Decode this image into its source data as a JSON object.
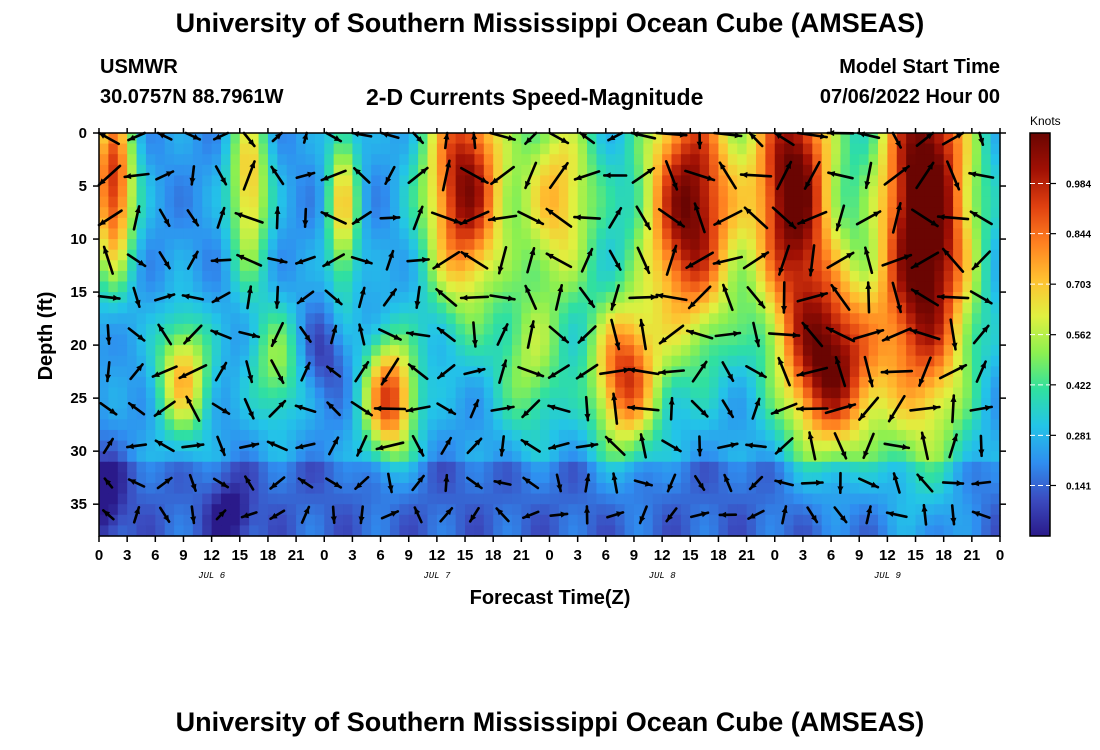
{
  "header": {
    "title": "University of Southern Mississippi Ocean Cube (AMSEAS)",
    "station": "USMWR",
    "coords": "30.0757N  88.7961W",
    "subtitle": "2-D Currents Speed-Magnitude",
    "model_start_label": "Model Start Time",
    "model_start_value": "07/06/2022 Hour 00"
  },
  "footer": {
    "title": "University of Southern Mississippi Ocean Cube (AMSEAS)"
  },
  "colors": {
    "colormap": [
      "#2a1a8a",
      "#3b4cc0",
      "#2f8ef0",
      "#23c4e8",
      "#30e0a0",
      "#8cf050",
      "#e0f040",
      "#ffc030",
      "#ff8020",
      "#e04010",
      "#a01004",
      "#6a0502"
    ],
    "arrow": "#000000",
    "axis": "#000000"
  },
  "chart_data": {
    "type": "heatmap",
    "xlabel": "Forecast Time(Z)",
    "ylabel": "Depth (ft)",
    "xlim": [
      0,
      96
    ],
    "ylim": [
      0,
      38
    ],
    "x_ticks": [
      0,
      3,
      6,
      9,
      12,
      15,
      18,
      21,
      24,
      27,
      30,
      33,
      36,
      39,
      42,
      45,
      48,
      51,
      54,
      57,
      60,
      63,
      66,
      69,
      72,
      75,
      78,
      81,
      84,
      87,
      90,
      93,
      96
    ],
    "x_tick_labels": [
      "0",
      "3",
      "6",
      "9",
      "12",
      "15",
      "18",
      "21",
      "0",
      "3",
      "6",
      "9",
      "12",
      "15",
      "18",
      "21",
      "0",
      "3",
      "6",
      "9",
      "12",
      "15",
      "18",
      "21",
      "0",
      "3",
      "6",
      "9",
      "12",
      "15",
      "18",
      "21",
      "0"
    ],
    "day_labels": [
      {
        "label": "JUL 6",
        "x": 12
      },
      {
        "label": "JUL 7",
        "x": 36
      },
      {
        "label": "JUL 8",
        "x": 60
      },
      {
        "label": "JUL 9",
        "x": 84
      }
    ],
    "y_ticks": [
      0,
      5,
      10,
      15,
      20,
      25,
      30,
      35
    ],
    "y_tick_labels": [
      "0",
      "5",
      "10",
      "15",
      "20",
      "25",
      "30",
      "35"
    ],
    "colorbar": {
      "label": "Knots",
      "min": 0,
      "max": 1.125,
      "ticks": [
        0.141,
        0.281,
        0.422,
        0.562,
        0.703,
        0.844,
        0.984
      ],
      "tick_labels": [
        "0.141",
        "0.281",
        "0.422",
        "0.562",
        "0.703",
        "0.844",
        "0.984"
      ]
    },
    "features": [
      {
        "x": 1.5,
        "y": 5,
        "sx": 1.6,
        "sy": 6,
        "v": 0.75
      },
      {
        "x": 16,
        "y": 5,
        "sx": 1.5,
        "sy": 6,
        "v": 0.5
      },
      {
        "x": 26,
        "y": 7,
        "sx": 1.2,
        "sy": 6,
        "v": 0.45
      },
      {
        "x": 39,
        "y": 5,
        "sx": 3,
        "sy": 8,
        "v": 0.85
      },
      {
        "x": 49,
        "y": 6,
        "sx": 3,
        "sy": 7,
        "v": 0.5
      },
      {
        "x": 63,
        "y": 7,
        "sx": 3.5,
        "sy": 9,
        "v": 0.9
      },
      {
        "x": 74,
        "y": 5,
        "sx": 3,
        "sy": 9,
        "v": 0.95
      },
      {
        "x": 88,
        "y": 8,
        "sx": 3.5,
        "sy": 14,
        "v": 1.05
      },
      {
        "x": 9,
        "y": 23,
        "sx": 2,
        "sy": 4,
        "v": 0.5
      },
      {
        "x": 31,
        "y": 25,
        "sx": 2,
        "sy": 4,
        "v": 0.7
      },
      {
        "x": 56,
        "y": 23,
        "sx": 2.5,
        "sy": 5,
        "v": 0.7
      },
      {
        "x": 78,
        "y": 22,
        "sx": 3.5,
        "sy": 6,
        "v": 0.85
      },
      {
        "x": 19,
        "y": 22,
        "sx": 2,
        "sy": 4,
        "v": 0.3
      },
      {
        "x": 46,
        "y": 22,
        "sx": 2.5,
        "sy": 5,
        "v": 0.3
      },
      {
        "x": 14,
        "y": 36,
        "sx": 1.5,
        "sy": 2,
        "v": -0.2
      },
      {
        "x": 0.5,
        "y": 34,
        "sx": 1.5,
        "sy": 3,
        "v": -0.2
      },
      {
        "x": 24,
        "y": 21,
        "sx": 2,
        "sy": 3,
        "v": -0.15
      }
    ],
    "arrow_grid": {
      "x_step": 3,
      "x_start": 1,
      "depths": [
        0,
        4,
        8,
        12,
        15.5,
        19,
        22.5,
        26,
        29.5,
        33,
        36
      ]
    }
  }
}
